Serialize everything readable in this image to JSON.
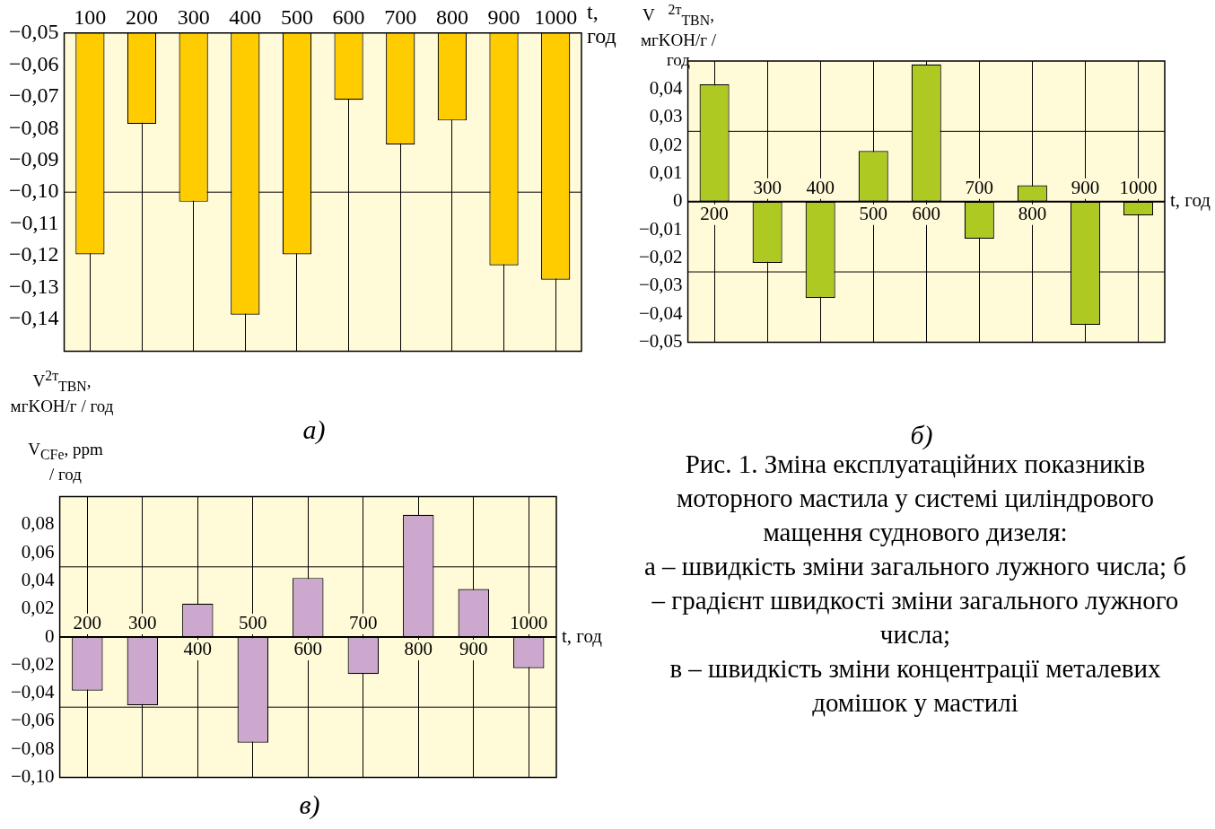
{
  "chart_data": [
    {
      "type": "bar",
      "title": "а)",
      "xlabel": "t, год",
      "ylabel": "V$^{2т}$$_{TBN}$, мгKOH/г / год",
      "categories": [
        "100",
        "200",
        "300",
        "400",
        "500",
        "600",
        "700",
        "800",
        "900",
        "1000"
      ],
      "values": [
        -0.1195,
        -0.0785,
        -0.103,
        -0.1385,
        -0.1195,
        -0.071,
        -0.085,
        -0.0775,
        -0.123,
        -0.1275
      ],
      "color": "#ffcc00",
      "ylim": [
        -0.15,
        -0.05
      ],
      "yticks": [
        {
          "value": -0.05,
          "label": "−0,05"
        },
        {
          "value": -0.06,
          "label": "−0,06"
        },
        {
          "value": -0.07,
          "label": "−0,07"
        },
        {
          "value": -0.08,
          "label": "−0,08"
        },
        {
          "value": -0.09,
          "label": "−0,09"
        },
        {
          "value": -0.1,
          "label": "−0,10"
        },
        {
          "value": -0.11,
          "label": "−0,11"
        },
        {
          "value": -0.12,
          "label": "−0,12"
        },
        {
          "value": -0.13,
          "label": "−0,13"
        },
        {
          "value": -0.14,
          "label": "−0,14"
        }
      ],
      "grid": "x",
      "ref_lines": [
        {
          "axis": "y",
          "value": -0.1,
          "color": "#000000"
        }
      ]
    },
    {
      "type": "bar",
      "title": "б)",
      "xlabel": "t, год",
      "ylabel": "V⃗$^{2т}$$_{TBN}$, мгKOH/г / год",
      "categories": [
        "200",
        "300",
        "400",
        "500",
        "600",
        "700",
        "800",
        "900",
        "1000"
      ],
      "values": [
        0.0417,
        -0.0218,
        -0.0342,
        0.018,
        0.0488,
        -0.0132,
        0.0058,
        -0.0438,
        -0.0049
      ],
      "color": "#adc922",
      "ylim": [
        -0.05,
        0.05
      ],
      "yticks": [
        {
          "value": -0.05,
          "label": "−0,05"
        },
        {
          "value": -0.04,
          "label": "−0,04"
        },
        {
          "value": -0.03,
          "label": "−0,03"
        },
        {
          "value": -0.02,
          "label": "−0,02"
        },
        {
          "value": -0.01,
          "label": "−0,01"
        },
        0,
        {
          "value": 0.01,
          "label": "0,01"
        },
        {
          "value": 0.02,
          "label": "0,02"
        },
        {
          "value": 0.03,
          "label": "0,03"
        },
        {
          "value": 0.04,
          "label": "0,04"
        }
      ],
      "grid": "x",
      "ref_lines": [
        {
          "axis": "y",
          "value": 0.025,
          "color": "#000000"
        },
        {
          "axis": "y",
          "value": -0.025,
          "color": "#000000"
        }
      ]
    },
    {
      "type": "bar",
      "title": "в)",
      "xlabel": "t, год",
      "ylabel": "V$_{CFe}$, ppm / год",
      "categories": [
        "200",
        "300",
        "400",
        "500",
        "600",
        "700",
        "800",
        "900",
        "1000"
      ],
      "values": [
        -0.0382,
        -0.0486,
        0.0238,
        -0.0753,
        0.0421,
        -0.0264,
        0.0871,
        0.0342,
        -0.0222
      ],
      "color": "#cca8cf",
      "ylim": [
        -0.1,
        0.1
      ],
      "yticks": [
        {
          "value": -0.1,
          "label": "−0,10"
        },
        {
          "value": -0.08,
          "label": "−0,08"
        },
        {
          "value": -0.06,
          "label": "−0,06"
        },
        {
          "value": -0.04,
          "label": "−0,04"
        },
        {
          "value": -0.02,
          "label": "−0,02"
        },
        0,
        {
          "value": 0.02,
          "label": "0,02"
        },
        {
          "value": 0.04,
          "label": "0,04"
        },
        {
          "value": 0.06,
          "label": "0,06"
        },
        {
          "value": 0.08,
          "label": "0,08"
        }
      ],
      "grid": "x",
      "ref_lines": [
        {
          "axis": "y",
          "value": 0.05,
          "color": "#000000"
        },
        {
          "axis": "y",
          "value": -0.05,
          "color": "#000000"
        }
      ]
    },
    {
      "type": "other",
      "annotations": [
        "Рис. 1. Зміна експлуатаційних показників моторного мастила у системі циліндрового мащення суднового дизеля:",
        "а – швидкість зміни загального лужного числа; б – градієнт швидкості зміни загального лужного числа;",
        "в – швидкість зміни концентрації металевих домішок у мастилі"
      ]
    }
  ]
}
